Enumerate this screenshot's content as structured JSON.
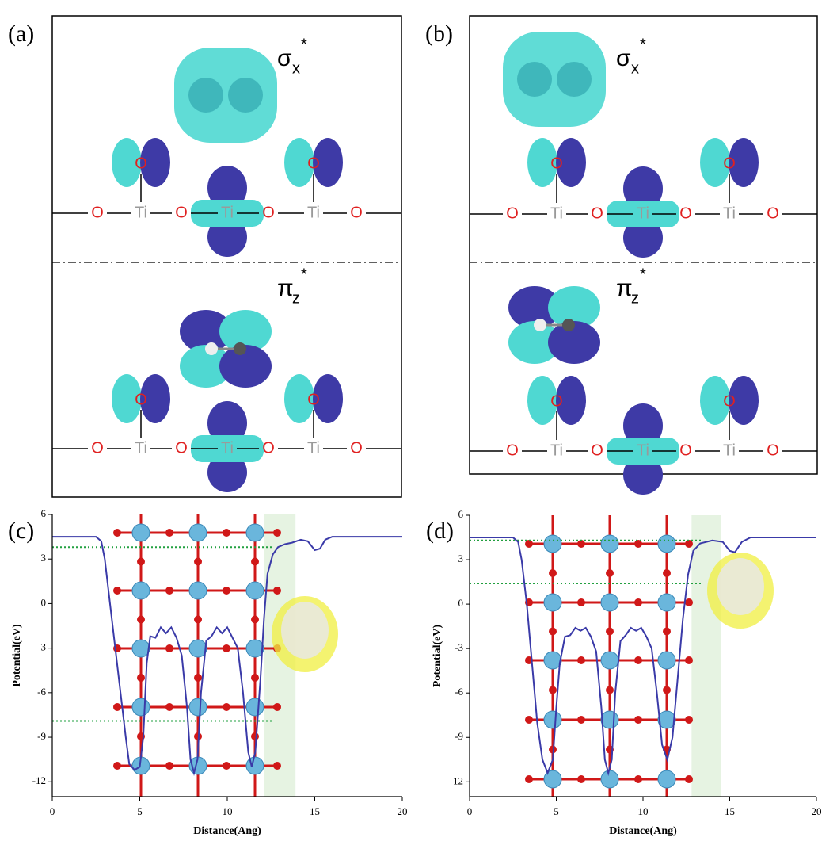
{
  "panels": [
    {
      "label": "(a)",
      "rows": [
        {
          "orbital": {
            "symbol": "σ",
            "sub": "x",
            "sup": "*"
          },
          "apical": [
            "O",
            "O"
          ],
          "chain": [
            "O",
            "Ti",
            "O",
            "Ti",
            "O",
            "Ti",
            "O"
          ]
        },
        {
          "orbital": {
            "symbol": "π",
            "sub": "z",
            "sup": "*"
          },
          "apical": [
            "O",
            "O"
          ],
          "chain": [
            "O",
            "Ti",
            "O",
            "Ti",
            "O",
            "Ti",
            "O"
          ]
        }
      ]
    },
    {
      "label": "(b)",
      "rows": [
        {
          "orbital": {
            "symbol": "σ",
            "sub": "x",
            "sup": "*"
          },
          "apical": [
            "O",
            "O"
          ],
          "chain": [
            "O",
            "Ti",
            "O",
            "Ti",
            "O",
            "Ti",
            "O"
          ]
        },
        {
          "orbital": {
            "symbol": "π",
            "sub": "z",
            "sup": "*"
          },
          "apical": [
            "O",
            "O"
          ],
          "chain": [
            "O",
            "Ti",
            "O",
            "Ti",
            "O",
            "Ti",
            "O"
          ]
        }
      ]
    }
  ],
  "chart_data": [
    {
      "type": "line",
      "label": "(c)",
      "xlabel": "Distance(Ang)",
      "ylabel": "Potential(eV)",
      "x": [
        0,
        2.5,
        2.8,
        3.0,
        3.3,
        3.6,
        3.9,
        4.2,
        4.4,
        4.7,
        5.0,
        5.2,
        5.4,
        5.6,
        5.9,
        6.2,
        6.5,
        6.8,
        7.1,
        7.4,
        7.7,
        7.9,
        8.1,
        8.3,
        8.5,
        8.8,
        9.1,
        9.4,
        9.7,
        10.0,
        10.3,
        10.6,
        10.9,
        11.2,
        11.4,
        11.6,
        11.9,
        12.1,
        12.3,
        12.6,
        12.9,
        13.3,
        13.7,
        14.2,
        14.6,
        15.0,
        15.3,
        15.6,
        16.0,
        20
      ],
      "series": [
        {
          "color": "#3a3aa8",
          "values": [
            4.5,
            4.5,
            4.2,
            3.0,
            0,
            -3,
            -6,
            -9,
            -10.8,
            -11.2,
            -11,
            -9,
            -4,
            -2.2,
            -2.3,
            -1.6,
            -2,
            -1.6,
            -2.3,
            -3.5,
            -7,
            -10.5,
            -11.4,
            -10.5,
            -6,
            -2.5,
            -2.2,
            -1.6,
            -2,
            -1.6,
            -2.3,
            -3,
            -6,
            -10,
            -11,
            -10,
            -5,
            -1,
            2,
            3.3,
            3.8,
            4.0,
            4.1,
            4.3,
            4.2,
            3.6,
            3.7,
            4.3,
            4.5,
            4.5
          ]
        }
      ],
      "xlim": [
        0,
        20
      ],
      "ylim": [
        -13,
        6
      ],
      "xticks": [
        0,
        5,
        10,
        15,
        20
      ],
      "yticks": [
        6,
        3,
        0,
        -3,
        -6,
        -9,
        -12
      ],
      "reference_lines": [
        3.8,
        -7.9
      ],
      "reference_color": "#22a040",
      "shaded_x": [
        12.1,
        13.9
      ],
      "shade_color": "#e6f3e2"
    },
    {
      "type": "line",
      "label": "(d)",
      "xlabel": "Distance(Ang)",
      "ylabel": "Potential(eV)",
      "x": [
        0,
        2.5,
        2.8,
        3.0,
        3.3,
        3.6,
        3.9,
        4.2,
        4.5,
        4.8,
        5.0,
        5.2,
        5.5,
        5.8,
        6.1,
        6.4,
        6.7,
        7.0,
        7.3,
        7.6,
        7.8,
        8.0,
        8.2,
        8.4,
        8.7,
        9.0,
        9.3,
        9.6,
        9.9,
        10.2,
        10.5,
        10.8,
        11.1,
        11.4,
        11.7,
        12.0,
        12.3,
        12.6,
        12.9,
        13.3,
        14.0,
        14.6,
        15.0,
        15.3,
        15.7,
        16.2,
        20
      ],
      "series": [
        {
          "color": "#3a3aa8",
          "values": [
            4.5,
            4.5,
            4.2,
            3,
            0,
            -4,
            -8,
            -10.5,
            -11.4,
            -10.5,
            -7,
            -4,
            -2.2,
            -2.1,
            -1.6,
            -1.8,
            -1.6,
            -2.2,
            -3.2,
            -7,
            -10.5,
            -11.4,
            -10.5,
            -6,
            -2.5,
            -2.1,
            -1.6,
            -1.8,
            -1.6,
            -2.2,
            -3,
            -6,
            -9.5,
            -10.5,
            -9,
            -5,
            -1,
            2,
            3.6,
            4.1,
            4.3,
            4.2,
            3.6,
            3.5,
            4.2,
            4.5,
            4.5
          ]
        }
      ],
      "xlim": [
        0,
        20
      ],
      "ylim": [
        -13,
        6
      ],
      "xticks": [
        0,
        5,
        10,
        15,
        20
      ],
      "yticks": [
        6,
        3,
        0,
        -3,
        -6,
        -9,
        -12
      ],
      "reference_lines": [
        4.3,
        1.4
      ],
      "reference_color": "#22a040",
      "shaded_x": [
        12.8,
        14.5
      ],
      "shade_color": "#e6f3e2"
    }
  ]
}
